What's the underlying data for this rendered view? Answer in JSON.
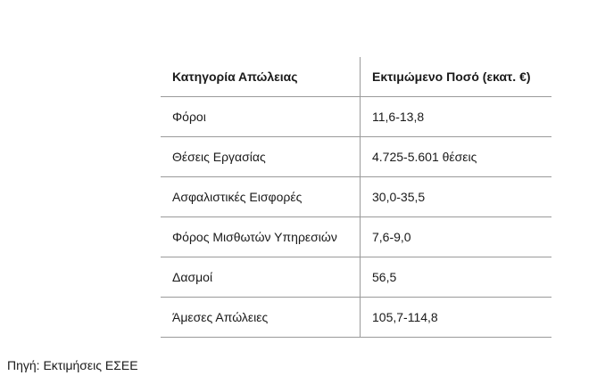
{
  "table": {
    "headers": [
      "Κατηγορία Απώλειας",
      "Εκτιμώμενο Ποσό (εκατ. €)"
    ],
    "rows": [
      [
        "Φόροι",
        "11,6-13,8"
      ],
      [
        "Θέσεις Εργασίας",
        "4.725-5.601 θέσεις"
      ],
      [
        "Ασφαλιστικές Εισφορές",
        "30,0-35,5"
      ],
      [
        "Φόρος Μισθωτών Υπηρεσιών",
        "7,6-9,0"
      ],
      [
        "Δασμοί",
        "56,5"
      ],
      [
        "Άμεσες Απώλειες",
        "105,7-114,8"
      ]
    ]
  },
  "source": "Πηγή: Εκτιμήσεις ΕΣΕΕ"
}
